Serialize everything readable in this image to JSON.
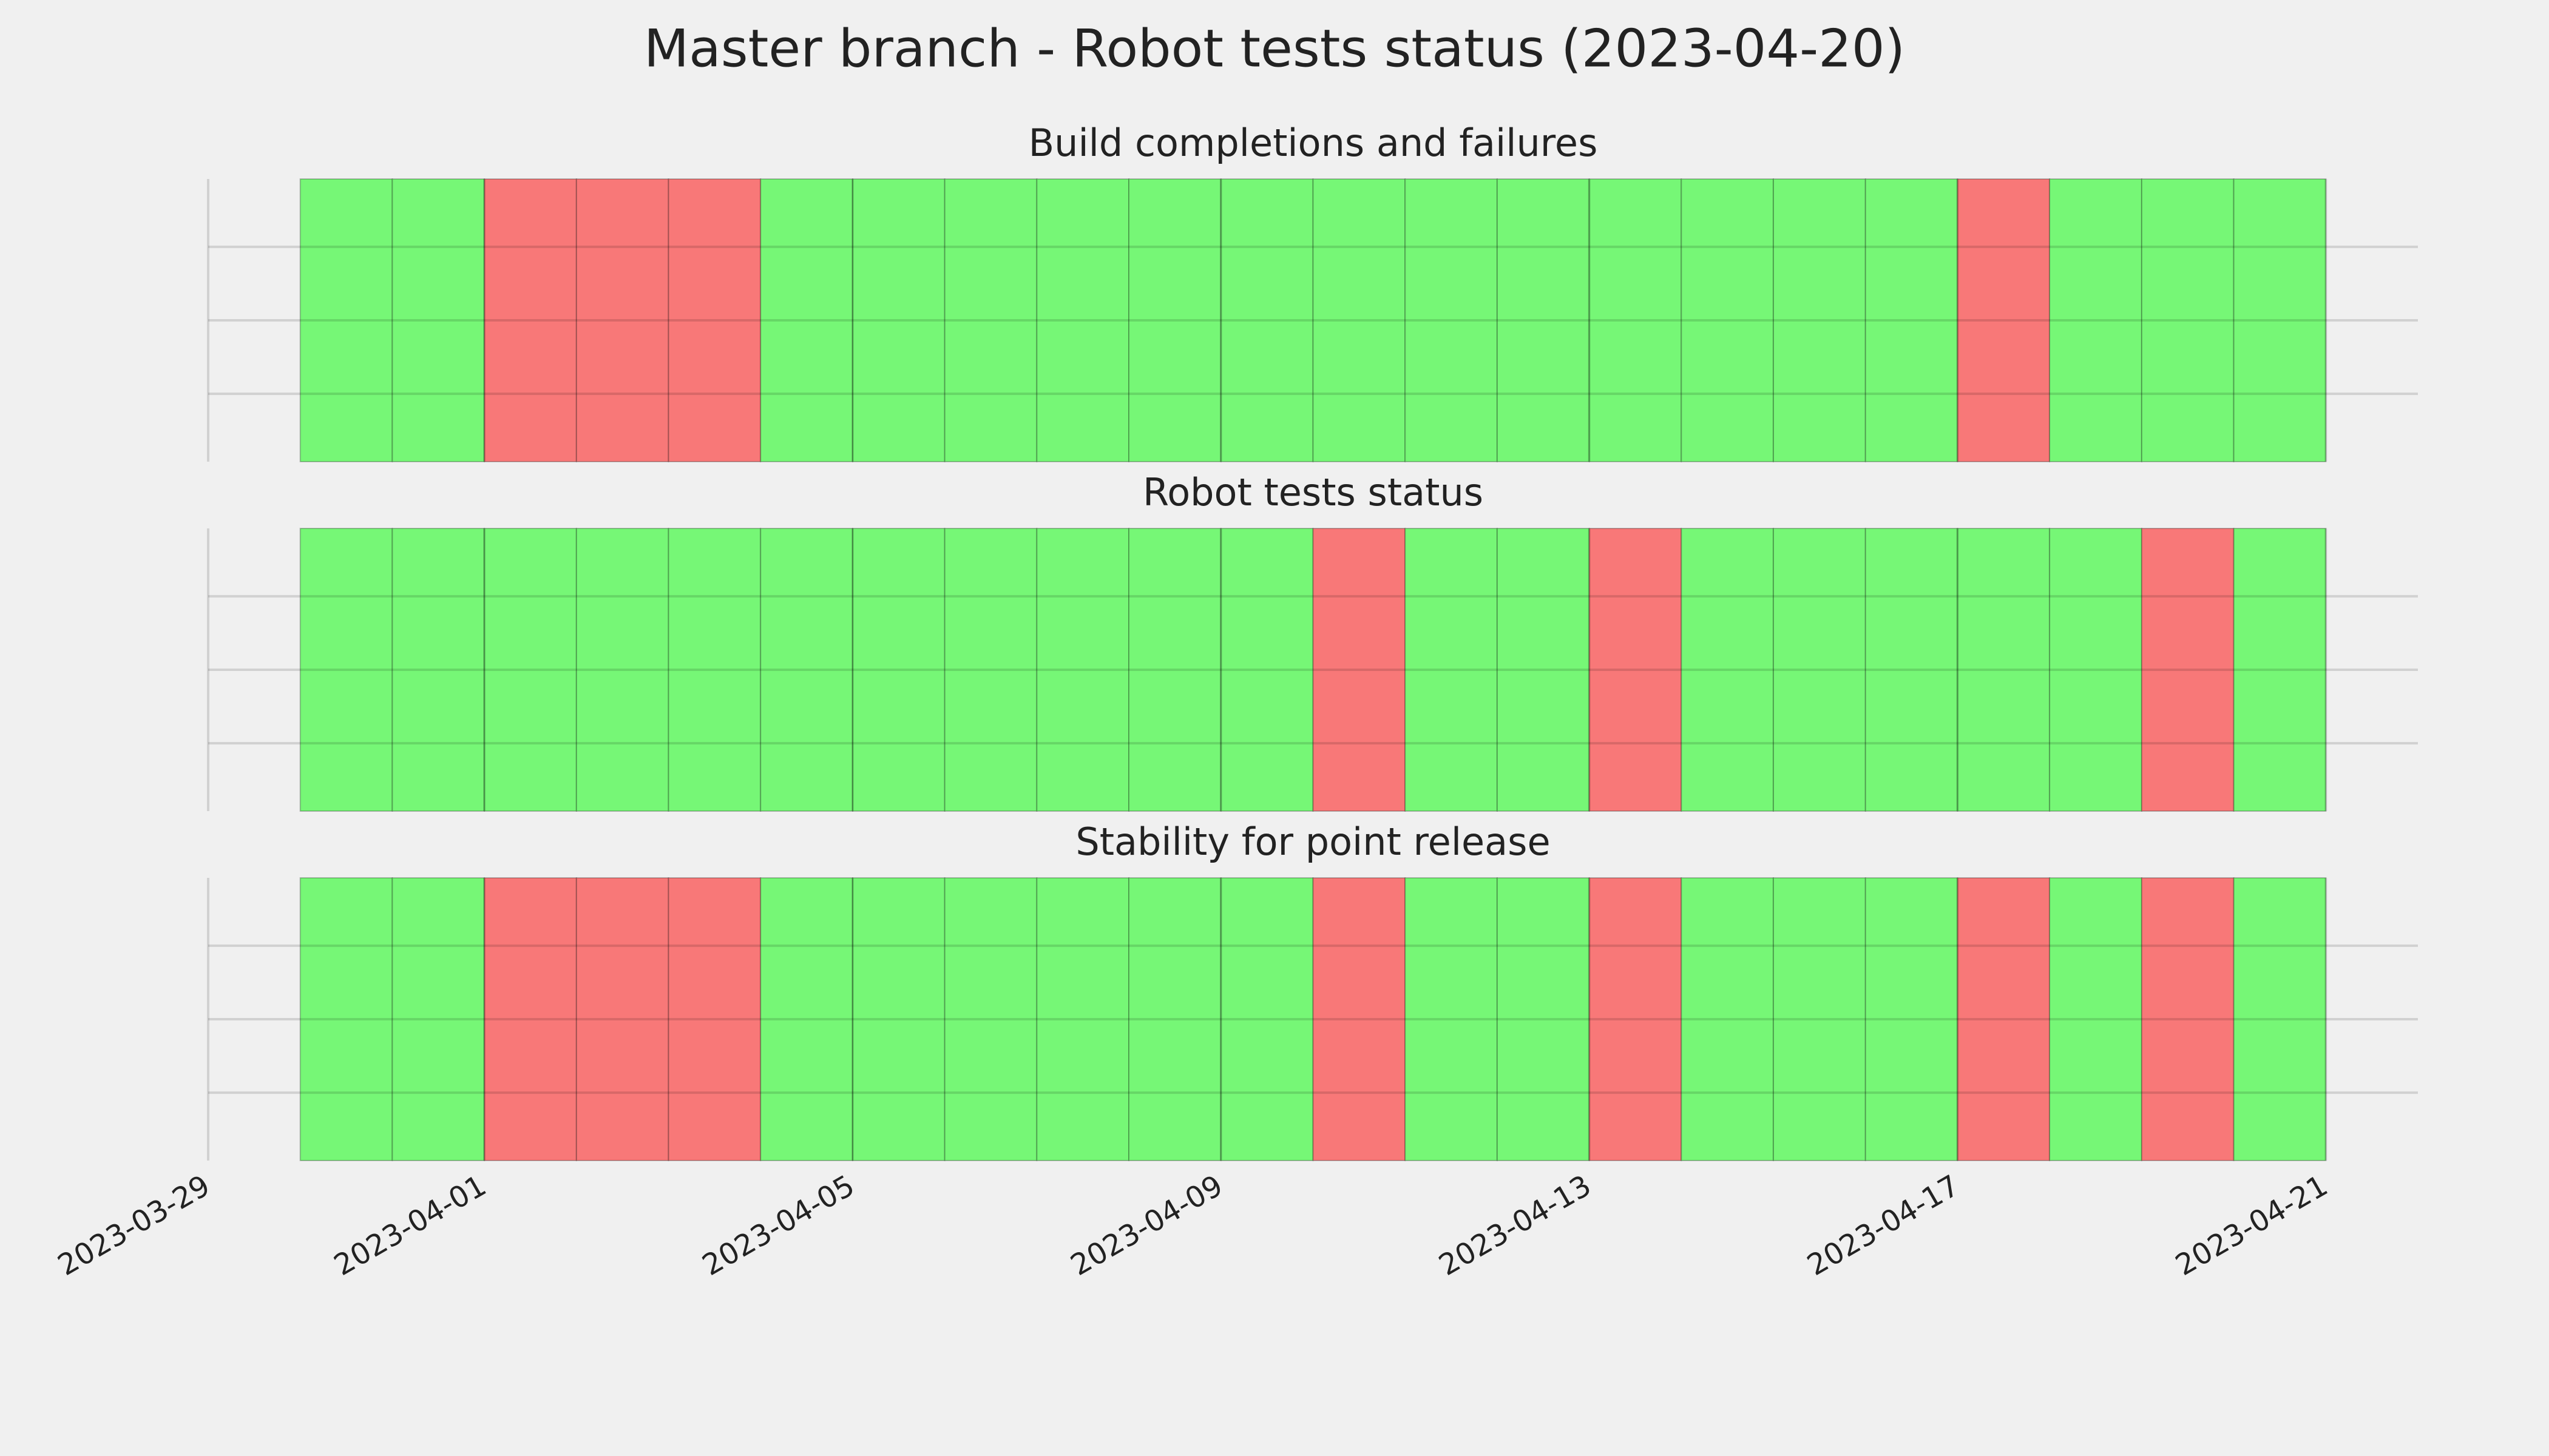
{
  "title": "Master branch - Robot tests status (2023-04-20)",
  "xlim": [
    "2023-03-29",
    "2023-04-22"
  ],
  "xticks": [
    "2023-03-29",
    "2023-04-01",
    "2023-04-05",
    "2023-04-09",
    "2023-04-13",
    "2023-04-17",
    "2023-04-21"
  ],
  "status_colors": [
    "#f87878",
    "#76f776"
  ],
  "chart_data": [
    {
      "type": "timeline",
      "title": "Build completions and failures",
      "x": [
        "2023-03-30",
        "2023-03-31",
        "2023-04-01",
        "2023-04-02",
        "2023-04-03",
        "2023-04-04",
        "2023-04-05",
        "2023-04-06",
        "2023-04-07",
        "2023-04-08",
        "2023-04-09",
        "2023-04-10",
        "2023-04-11",
        "2023-04-12",
        "2023-04-13",
        "2023-04-14",
        "2023-04-15",
        "2023-04-16",
        "2023-04-17",
        "2023-04-18",
        "2023-04-19",
        "2023-04-20"
      ],
      "values": [
        1,
        1,
        0,
        0,
        0,
        1,
        1,
        1,
        1,
        1,
        1,
        1,
        1,
        1,
        1,
        1,
        1,
        1,
        0,
        1,
        1,
        1
      ]
    },
    {
      "type": "timeline",
      "title": "Robot tests status",
      "x": [
        "2023-03-30",
        "2023-03-31",
        "2023-04-01",
        "2023-04-02",
        "2023-04-03",
        "2023-04-04",
        "2023-04-05",
        "2023-04-06",
        "2023-04-07",
        "2023-04-08",
        "2023-04-09",
        "2023-04-10",
        "2023-04-11",
        "2023-04-12",
        "2023-04-13",
        "2023-04-14",
        "2023-04-15",
        "2023-04-16",
        "2023-04-17",
        "2023-04-18",
        "2023-04-19",
        "2023-04-20"
      ],
      "values": [
        1,
        1,
        1,
        1,
        1,
        1,
        1,
        1,
        1,
        1,
        1,
        0,
        1,
        1,
        0,
        1,
        1,
        1,
        1,
        1,
        0,
        1
      ]
    },
    {
      "type": "timeline",
      "title": "Stability for point release",
      "x": [
        "2023-03-30",
        "2023-03-31",
        "2023-04-01",
        "2023-04-02",
        "2023-04-03",
        "2023-04-04",
        "2023-04-05",
        "2023-04-06",
        "2023-04-07",
        "2023-04-08",
        "2023-04-09",
        "2023-04-10",
        "2023-04-11",
        "2023-04-12",
        "2023-04-13",
        "2023-04-14",
        "2023-04-15",
        "2023-04-16",
        "2023-04-17",
        "2023-04-18",
        "2023-04-19",
        "2023-04-20"
      ],
      "values": [
        1,
        1,
        0,
        0,
        0,
        1,
        1,
        1,
        1,
        1,
        1,
        0,
        1,
        1,
        0,
        1,
        1,
        1,
        0,
        1,
        0,
        1
      ]
    }
  ]
}
